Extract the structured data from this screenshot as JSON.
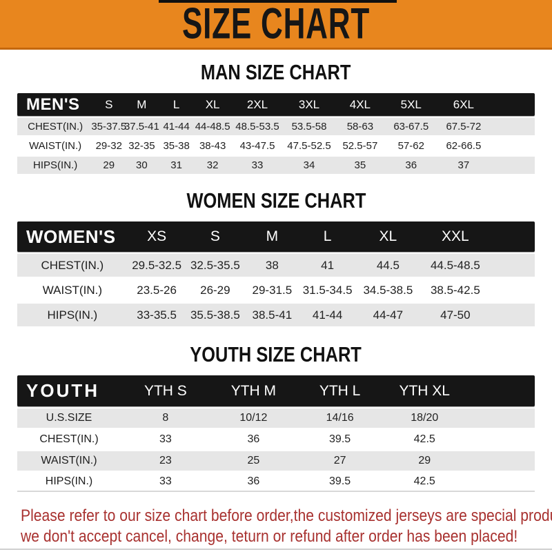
{
  "banner": {
    "title": "SIZE CHART",
    "bg_color": "#E8861E",
    "text_color": "#161616"
  },
  "tables": [
    {
      "section_title": "MAN SIZE CHART",
      "header": [
        "MEN'S",
        "S",
        "M",
        "L",
        "XL",
        "2XL",
        "3XL",
        "4XL",
        "5XL",
        "6XL"
      ],
      "rows": [
        [
          "CHEST(IN.)",
          "35-37.5",
          "37.5-41",
          "41-44",
          "44-48.5",
          "48.5-53.5",
          "53.5-58",
          "58-63",
          "63-67.5",
          "67.5-72"
        ],
        [
          "WAIST(IN.)",
          "29-32",
          "32-35",
          "35-38",
          "38-43",
          "43-47.5",
          "47.5-52.5",
          "52.5-57",
          "57-62",
          "62-66.5"
        ],
        [
          "HIPS(IN.)",
          "29",
          "30",
          "31",
          "32",
          "33",
          "34",
          "35",
          "36",
          "37"
        ]
      ]
    },
    {
      "section_title": "WOMEN SIZE CHART",
      "header": [
        "WOMEN'S",
        "XS",
        "S",
        "M",
        "L",
        "XL",
        "XXL"
      ],
      "rows": [
        [
          "CHEST(IN.)",
          "29.5-32.5",
          "32.5-35.5",
          "38",
          "41",
          "44.5",
          "44.5-48.5"
        ],
        [
          "WAIST(IN.)",
          "23.5-26",
          "26-29",
          "29-31.5",
          "31.5-34.5",
          "34.5-38.5",
          "38.5-42.5"
        ],
        [
          "HIPS(IN.)",
          "33-35.5",
          "35.5-38.5",
          "38.5-41",
          "41-44",
          "44-47",
          "47-50"
        ]
      ]
    },
    {
      "section_title": "YOUTH SIZE CHART",
      "header": [
        "YOUTH",
        "YTH S",
        "YTH M",
        "YTH L",
        "YTH XL"
      ],
      "rows": [
        [
          "U.S.SIZE",
          "8",
          "10/12",
          "14/16",
          "18/20"
        ],
        [
          "CHEST(IN.)",
          "33",
          "36",
          "39.5",
          "42.5"
        ],
        [
          "WAIST(IN.)",
          "23",
          "25",
          "27",
          "29"
        ],
        [
          "HIPS(IN.)",
          "33",
          "36",
          "39.5",
          "42.5"
        ]
      ]
    }
  ],
  "footer": {
    "line1": "Please refer to our size chart before order,the customized jerseys are special products,",
    "line2": "we don't accept cancel, change, teturn or refund after order has been placed!",
    "text_color": "#A8312F"
  },
  "colors": {
    "header_orange": "#E8861E",
    "header_orange_border": "#C4680E",
    "band_bg": "#161616",
    "band_text": "#FFFFFF",
    "row_alt_bg": "#E6E6E6",
    "footer_red": "#A8312F"
  }
}
